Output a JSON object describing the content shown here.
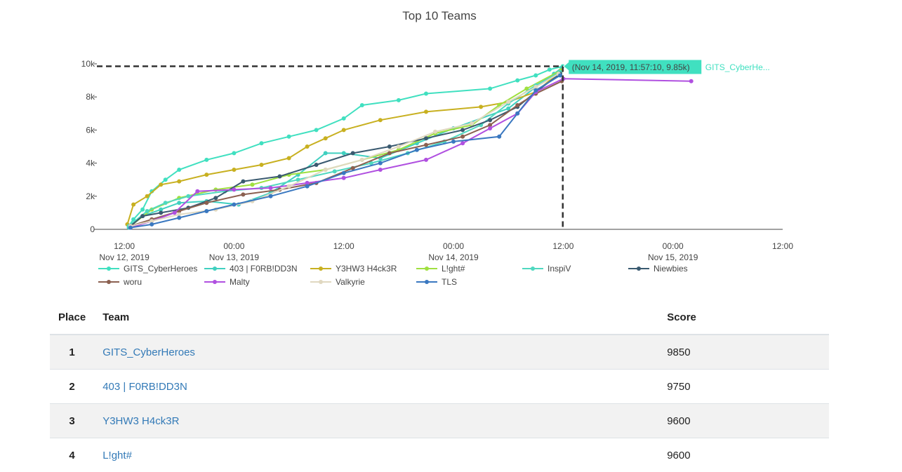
{
  "chart_data": {
    "type": "line",
    "title": "Top 10 Teams",
    "xlabel": "",
    "ylabel": "",
    "ylim": [
      0,
      10000
    ],
    "xlim": [
      "2019-11-12 09:00",
      "2019-11-15 12:00"
    ],
    "y_ticks": [
      0,
      2000,
      4000,
      6000,
      8000,
      10000
    ],
    "y_tick_labels": [
      "0",
      "2k",
      "4k",
      "6k",
      "8k",
      "10k"
    ],
    "x_ticks": [
      "2019-11-12 12:00",
      "2019-11-13 00:00",
      "2019-11-13 12:00",
      "2019-11-14 00:00",
      "2019-11-14 12:00",
      "2019-11-15 00:00",
      "2019-11-15 12:00"
    ],
    "x_tick_labels": [
      [
        "12:00",
        "Nov 12, 2019"
      ],
      [
        "00:00",
        "Nov 13, 2019"
      ],
      [
        "12:00",
        ""
      ],
      [
        "00:00",
        "Nov 14, 2019"
      ],
      [
        "12:00",
        ""
      ],
      [
        "00:00",
        "Nov 15, 2019"
      ],
      [
        "12:00",
        ""
      ]
    ],
    "legend_placement": "bottom",
    "grid": false,
    "series": [
      {
        "name": "GITS_CyberHeroes",
        "color": "#40e0c0",
        "x": [
          "2019-11-12 12:30",
          "2019-11-12 13:00",
          "2019-11-12 14:00",
          "2019-11-12 15:00",
          "2019-11-12 16:30",
          "2019-11-12 18:00",
          "2019-11-12 21:00",
          "2019-11-13 00:00",
          "2019-11-13 03:00",
          "2019-11-13 06:00",
          "2019-11-13 09:00",
          "2019-11-13 12:00",
          "2019-11-13 14:00",
          "2019-11-13 18:00",
          "2019-11-13 21:00",
          "2019-11-14 04:00",
          "2019-11-14 07:00",
          "2019-11-14 09:00",
          "2019-11-14 10:30",
          "2019-11-14 11:57"
        ],
        "y": [
          200,
          600,
          1200,
          2300,
          3000,
          3600,
          4200,
          4600,
          5200,
          5600,
          6000,
          6700,
          7500,
          7800,
          8200,
          8500,
          9000,
          9300,
          9650,
          9850
        ]
      },
      {
        "name": "403 | F0RB!DD3N",
        "color": "#40d0c0",
        "x": [
          "2019-11-12 12:30",
          "2019-11-12 14:00",
          "2019-11-12 16:00",
          "2019-11-12 18:00",
          "2019-11-12 21:00",
          "2019-11-13 00:30",
          "2019-11-13 04:00",
          "2019-11-13 07:00",
          "2019-11-13 10:00",
          "2019-11-13 12:00",
          "2019-11-13 16:00",
          "2019-11-13 20:00",
          "2019-11-14 00:00",
          "2019-11-14 06:00",
          "2019-11-14 09:00",
          "2019-11-14 11:00",
          "2019-11-14 11:50"
        ],
        "y": [
          100,
          800,
          1200,
          1600,
          1700,
          1500,
          2200,
          3300,
          4600,
          4600,
          4300,
          5200,
          6100,
          7300,
          8600,
          9400,
          9750
        ]
      },
      {
        "name": "Y3HW3 H4ck3R",
        "color": "#c8b020",
        "x": [
          "2019-11-12 12:20",
          "2019-11-12 13:00",
          "2019-11-12 14:30",
          "2019-11-12 16:00",
          "2019-11-12 18:00",
          "2019-11-12 21:00",
          "2019-11-13 00:00",
          "2019-11-13 03:00",
          "2019-11-13 06:00",
          "2019-11-13 08:00",
          "2019-11-13 10:00",
          "2019-11-13 12:00",
          "2019-11-13 16:00",
          "2019-11-13 21:00",
          "2019-11-14 03:00",
          "2019-11-14 06:00",
          "2019-11-14 09:00",
          "2019-11-14 11:50"
        ],
        "y": [
          300,
          1500,
          2000,
          2700,
          2900,
          3300,
          3600,
          3900,
          4300,
          5000,
          5500,
          6000,
          6600,
          7100,
          7400,
          7700,
          8300,
          9600
        ]
      },
      {
        "name": "L!ght#",
        "color": "#a0e040",
        "x": [
          "2019-11-12 12:40",
          "2019-11-12 15:00",
          "2019-11-12 18:00",
          "2019-11-12 22:00",
          "2019-11-13 02:00",
          "2019-11-13 06:00",
          "2019-11-13 10:00",
          "2019-11-13 14:00",
          "2019-11-13 18:00",
          "2019-11-13 22:00",
          "2019-11-14 02:00",
          "2019-11-14 05:00",
          "2019-11-14 08:00",
          "2019-11-14 11:45"
        ],
        "y": [
          200,
          1200,
          1900,
          2400,
          2700,
          3300,
          3600,
          4200,
          4800,
          5800,
          6300,
          7500,
          8500,
          9600
        ]
      },
      {
        "name": "InspiV",
        "color": "#50d8c0",
        "x": [
          "2019-11-12 12:30",
          "2019-11-12 14:30",
          "2019-11-12 16:30",
          "2019-11-12 19:00",
          "2019-11-12 23:00",
          "2019-11-13 03:00",
          "2019-11-13 07:00",
          "2019-11-13 11:00",
          "2019-11-13 15:00",
          "2019-11-13 19:00",
          "2019-11-13 23:00",
          "2019-11-14 03:00",
          "2019-11-14 06:00",
          "2019-11-14 09:00",
          "2019-11-14 11:40"
        ],
        "y": [
          200,
          1100,
          1600,
          2000,
          2300,
          2500,
          3000,
          3500,
          4000,
          4600,
          5300,
          6300,
          7600,
          8700,
          9500
        ]
      },
      {
        "name": "Niewbies",
        "color": "#3a5a70",
        "x": [
          "2019-11-12 12:40",
          "2019-11-12 14:00",
          "2019-11-12 16:00",
          "2019-11-12 19:00",
          "2019-11-12 22:00",
          "2019-11-13 01:00",
          "2019-11-13 05:00",
          "2019-11-13 09:00",
          "2019-11-13 13:00",
          "2019-11-13 17:00",
          "2019-11-13 21:00",
          "2019-11-14 01:00",
          "2019-11-14 04:00",
          "2019-11-14 07:00",
          "2019-11-14 09:00",
          "2019-11-14 11:40"
        ],
        "y": [
          200,
          800,
          1000,
          1300,
          1900,
          2900,
          3200,
          3900,
          4600,
          5000,
          5500,
          6000,
          6600,
          7400,
          8300,
          9400
        ]
      },
      {
        "name": "woru",
        "color": "#8b6050",
        "x": [
          "2019-11-12 12:40",
          "2019-11-12 15:00",
          "2019-11-12 18:00",
          "2019-11-12 21:00",
          "2019-11-13 01:00",
          "2019-11-13 05:00",
          "2019-11-13 09:00",
          "2019-11-13 13:00",
          "2019-11-13 17:00",
          "2019-11-13 21:00",
          "2019-11-14 01:00",
          "2019-11-14 04:00",
          "2019-11-14 07:00",
          "2019-11-14 09:00",
          "2019-11-14 11:50"
        ],
        "y": [
          200,
          600,
          1100,
          1600,
          2100,
          2400,
          2800,
          3700,
          4600,
          5100,
          5600,
          6300,
          7500,
          8200,
          8950
        ]
      },
      {
        "name": "Malty",
        "color": "#b050e0",
        "x": [
          "2019-11-12 12:40",
          "2019-11-12 15:00",
          "2019-11-12 17:30",
          "2019-11-12 20:00",
          "2019-11-13 00:00",
          "2019-11-13 04:00",
          "2019-11-13 08:00",
          "2019-11-13 12:00",
          "2019-11-13 16:00",
          "2019-11-13 21:00",
          "2019-11-14 01:00",
          "2019-11-14 04:00",
          "2019-11-14 07:00",
          "2019-11-14 09:00",
          "2019-11-14 12:00",
          "2019-11-15 02:00"
        ],
        "y": [
          100,
          500,
          1000,
          2300,
          2400,
          2500,
          2800,
          3100,
          3600,
          4200,
          5200,
          6100,
          7000,
          8300,
          9100,
          8950
        ]
      },
      {
        "name": "Valkyrie",
        "color": "#e0d8c0",
        "x": [
          "2019-11-12 12:40",
          "2019-11-12 15:00",
          "2019-11-12 18:00",
          "2019-11-12 22:00",
          "2019-11-13 02:00",
          "2019-11-13 06:00",
          "2019-11-13 10:00",
          "2019-11-13 14:00",
          "2019-11-13 18:00",
          "2019-11-13 22:00",
          "2019-11-14 02:00",
          "2019-11-14 06:00",
          "2019-11-14 09:00",
          "2019-11-14 11:30"
        ],
        "y": [
          200,
          500,
          900,
          1200,
          1700,
          2600,
          3600,
          4200,
          5000,
          5900,
          6400,
          7700,
          8600,
          9400
        ]
      },
      {
        "name": "TLS",
        "color": "#3a78c0",
        "x": [
          "2019-11-12 12:40",
          "2019-11-12 15:00",
          "2019-11-12 18:00",
          "2019-11-12 21:00",
          "2019-11-13 00:00",
          "2019-11-13 04:00",
          "2019-11-13 08:00",
          "2019-11-13 12:00",
          "2019-11-13 16:00",
          "2019-11-13 20:00",
          "2019-11-14 00:00",
          "2019-11-14 05:00",
          "2019-11-14 07:00",
          "2019-11-14 09:00",
          "2019-11-14 11:40"
        ],
        "y": [
          100,
          300,
          700,
          1100,
          1500,
          2000,
          2600,
          3400,
          4000,
          4800,
          5300,
          5600,
          7000,
          8400,
          9300
        ]
      }
    ],
    "hover": {
      "series": "GITS_CyberHeroes",
      "x": "2019-11-14 11:57:10",
      "y": 9850,
      "label": "(Nov 14, 2019, 11:57:10, 9.85k)",
      "name_label": "GITS_CyberHe..."
    }
  },
  "table": {
    "headers": {
      "place": "Place",
      "team": "Team",
      "score": "Score"
    },
    "rows": [
      {
        "place": "1",
        "team": "GITS_CyberHeroes",
        "score": "9850"
      },
      {
        "place": "2",
        "team": "403 | F0RB!DD3N",
        "score": "9750"
      },
      {
        "place": "3",
        "team": "Y3HW3 H4ck3R",
        "score": "9600"
      },
      {
        "place": "4",
        "team": "L!ght#",
        "score": "9600"
      }
    ]
  }
}
